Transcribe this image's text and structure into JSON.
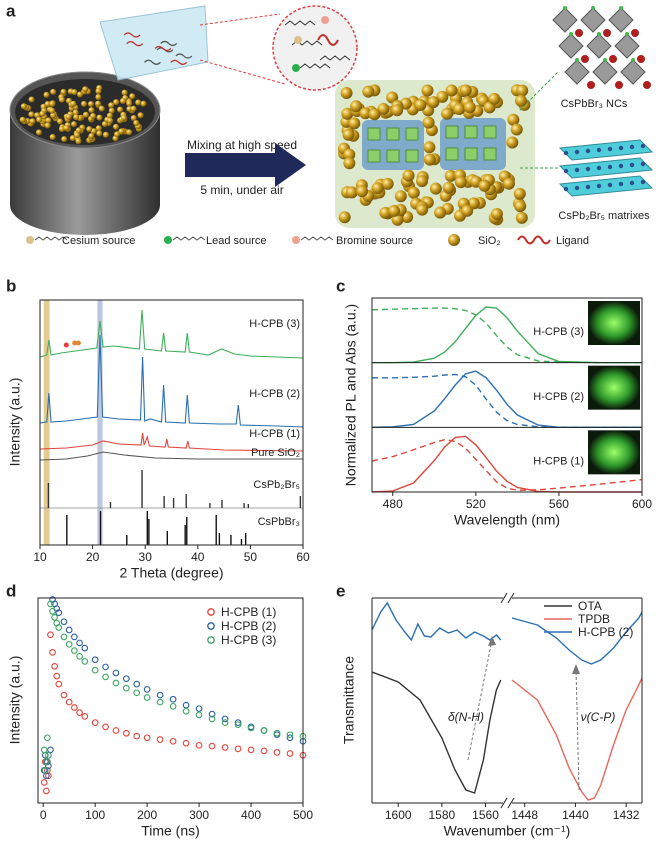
{
  "schematic": {
    "panel_label": "a",
    "arrow_top": "Mixing at high speed",
    "arrow_bottom": "5 min, under air",
    "nc_label": "CsPbBr₃ NCs",
    "matrix_label": "CsPb₂Br₅ matrixes",
    "legend": [
      "Cesium source",
      "Lead source",
      "Bromine source",
      "SiO₂",
      "Ligand"
    ]
  },
  "chart_data": [
    {
      "panel_label": "b",
      "type": "line",
      "xlabel": "2 Theta (degree)",
      "ylabel": "Intensity (a.u.)",
      "xlim": [
        10,
        60
      ],
      "xticks": [
        10,
        20,
        30,
        40,
        50,
        60
      ],
      "ylim": [
        0,
        245
      ],
      "shaded_ranges": [
        {
          "range": [
            10.7,
            11.8
          ],
          "color": "#d9b86a"
        },
        {
          "range": [
            20.9,
            21.9
          ],
          "color": "#a9b4d6"
        }
      ],
      "markers": [
        {
          "x": 15.0,
          "y": 200,
          "color": "#e0403a"
        },
        {
          "x": 16.6,
          "y": 202,
          "color": "#e08a30"
        },
        {
          "x": 17.3,
          "y": 202,
          "color": "#e08a30"
        }
      ],
      "series": [
        {
          "name": "H-CPB (3)",
          "color": "#3fae5a",
          "x": [
            10,
            11.3,
            11.7,
            12.1,
            14,
            20.8,
            21.4,
            22,
            24,
            28.9,
            29.4,
            29.9,
            31.5,
            33.1,
            33.5,
            33.9,
            37.6,
            38,
            38.4,
            42,
            44.5,
            47,
            50,
            55,
            60
          ],
          "values": [
            188,
            190,
            205,
            190,
            192,
            197,
            224,
            198,
            199,
            196,
            235,
            196,
            195,
            194,
            212,
            194,
            193,
            212,
            193,
            190,
            196,
            191,
            189,
            188,
            187
          ]
        },
        {
          "name": "H-CPB (2)",
          "color": "#2a6fb0",
          "x": [
            10,
            11.3,
            11.7,
            12.1,
            15,
            20.9,
            21.4,
            21.9,
            25,
            29.1,
            29.5,
            29.9,
            31,
            33.1,
            33.5,
            33.9,
            37.6,
            38,
            38.4,
            44,
            47.3,
            47.7,
            48.1,
            55,
            60
          ],
          "values": [
            122,
            123,
            152,
            123,
            124,
            128,
            210,
            128,
            126,
            125,
            188,
            124,
            126,
            123,
            160,
            123,
            122,
            150,
            122,
            121,
            121,
            140,
            120,
            119,
            118
          ]
        },
        {
          "name": "H-CPB (1)",
          "color": "#e0453c",
          "x": [
            10,
            15,
            20,
            22,
            25,
            29.2,
            29.5,
            29.8,
            30.4,
            30.8,
            33.8,
            34.1,
            34.4,
            37.8,
            38.1,
            38.4,
            45,
            60
          ],
          "values": [
            96,
            97,
            100,
            104,
            101,
            100,
            112,
            100,
            108,
            99,
            98,
            106,
            98,
            97,
            104,
            97,
            95,
            94
          ]
        },
        {
          "name": "Pure SiO₂",
          "color": "#555555",
          "x": [
            10,
            15,
            19,
            22,
            26,
            32,
            40,
            50,
            60
          ],
          "values": [
            85,
            86,
            89,
            93,
            90,
            87,
            86,
            86,
            86
          ]
        },
        {
          "name": "CsPb₂Br₅",
          "type": "stem",
          "base": 37,
          "color": "#333333",
          "x": [
            11.6,
            23.4,
            29.4,
            33.6,
            35.4,
            37.8,
            42.3,
            44.6,
            48.8,
            49.6,
            59.5
          ],
          "values": [
            62,
            43,
            75,
            49,
            47,
            51,
            42,
            45,
            42,
            41,
            49
          ]
        },
        {
          "name": "CsPbBr₃",
          "type": "stem",
          "base": 0,
          "color": "#111111",
          "x": [
            15.1,
            21.5,
            26.5,
            30.4,
            30.7,
            34.2,
            37.6,
            37.9,
            43.5,
            44.1,
            46.3,
            48.3,
            49.1
          ],
          "values": [
            30,
            34,
            10,
            34,
            26,
            14,
            20,
            28,
            30,
            12,
            10,
            6,
            12
          ]
        }
      ]
    },
    {
      "panel_label": "c",
      "type": "line",
      "xlabel": "Wavelength (nm)",
      "ylabel": "Normalized PL and Abs (a.u.)",
      "xlim": [
        470,
        600
      ],
      "xticks": [
        480,
        520,
        560,
        600
      ],
      "ylim": [
        0,
        1.15
      ],
      "x": [
        470,
        480,
        490,
        500,
        505,
        510,
        515,
        520,
        525,
        530,
        535,
        540,
        550,
        560,
        580,
        600
      ],
      "subplots": [
        {
          "label": "H-CPB (3)",
          "color": "#3fae5a",
          "series": [
            {
              "style": "solid",
              "values": [
                0,
                0,
                0.01,
                0.08,
                0.19,
                0.37,
                0.61,
                0.84,
                0.99,
                0.97,
                0.8,
                0.56,
                0.16,
                0.02,
                0,
                0
              ]
            },
            {
              "style": "dashed",
              "values": [
                0.94,
                0.95,
                0.96,
                0.97,
                0.97,
                0.96,
                0.93,
                0.85,
                0.7,
                0.48,
                0.28,
                0.14,
                0.03,
                0.01,
                0,
                0
              ]
            }
          ]
        },
        {
          "label": "H-CPB (2)",
          "color": "#2a6fb0",
          "series": [
            {
              "style": "solid",
              "values": [
                0,
                0.01,
                0.05,
                0.29,
                0.51,
                0.75,
                0.95,
                1.0,
                0.88,
                0.66,
                0.41,
                0.22,
                0.04,
                0,
                0,
                0
              ]
            },
            {
              "style": "dashed",
              "values": [
                0.88,
                0.88,
                0.89,
                0.91,
                0.93,
                0.94,
                0.9,
                0.75,
                0.5,
                0.27,
                0.12,
                0.05,
                0.01,
                0,
                0,
                0
              ]
            }
          ]
        },
        {
          "label": "H-CPB (1)",
          "color": "#e0453c",
          "series": [
            {
              "style": "solid",
              "values": [
                0,
                0.02,
                0.16,
                0.56,
                0.8,
                0.97,
                0.99,
                0.84,
                0.61,
                0.37,
                0.19,
                0.08,
                0.01,
                0,
                0,
                0
              ]
            },
            {
              "style": "dashed",
              "values": [
                0.55,
                0.63,
                0.75,
                0.88,
                0.93,
                0.9,
                0.78,
                0.58,
                0.38,
                0.18,
                0.07,
                0.03,
                0.04,
                0.07,
                0.14,
                0.22
              ]
            }
          ]
        }
      ]
    },
    {
      "panel_label": "d",
      "type": "scatter",
      "xlabel": "Time (ns)",
      "ylabel": "Intensity (a.u.)",
      "xlim": [
        -10,
        500
      ],
      "xticks": [
        0,
        100,
        200,
        300,
        400,
        500
      ],
      "ylim": [
        1,
        1000
      ],
      "ylog": true,
      "legend": "upper right",
      "x": [
        2,
        4,
        6,
        8,
        10,
        14,
        18,
        22,
        26,
        30,
        40,
        50,
        60,
        70,
        80,
        100,
        120,
        140,
        160,
        180,
        200,
        225,
        250,
        275,
        300,
        325,
        350,
        375,
        400,
        425,
        450,
        475,
        500
      ],
      "series": [
        {
          "name": "H-CPB (1)",
          "color": "#e8433a",
          "values": [
            2,
            4,
            1.5,
            3,
            2.5,
            290,
            160,
            100,
            72,
            55,
            38,
            30,
            25,
            21,
            18.5,
            15,
            13,
            11.5,
            10.5,
            9.5,
            9,
            8.5,
            8,
            7.5,
            7,
            6.8,
            6.5,
            6.2,
            6,
            5.8,
            5.5,
            5.3,
            5
          ]
        },
        {
          "name": "H-CPB (2)",
          "color": "#2a5ea8",
          "values": [
            3,
            5,
            2.5,
            4,
            3.5,
            6,
            950,
            820,
            700,
            610,
            450,
            340,
            270,
            220,
            185,
            125,
            98,
            80,
            66,
            55,
            46,
            38,
            33,
            27,
            24,
            20,
            17,
            15,
            13,
            11.5,
            10,
            9,
            8
          ]
        },
        {
          "name": "H-CPB (3)",
          "color": "#3da660",
          "values": [
            6,
            3,
            4,
            9,
            5,
            820,
            640,
            520,
            430,
            370,
            270,
            210,
            170,
            140,
            118,
            88,
            70,
            57,
            48,
            41,
            35,
            30,
            26,
            22,
            19.5,
            17,
            15,
            14,
            12.5,
            11.5,
            10.5,
            10,
            9.5
          ]
        }
      ]
    },
    {
      "panel_label": "e",
      "type": "line",
      "xlabel": "Wavenumber (cm⁻¹)",
      "ylabel": "Transmittance",
      "xlim": [
        [
          1612,
          1552
        ],
        [
          1450,
          1429.5
        ]
      ],
      "xticks": [
        1600,
        1580,
        1560,
        1448,
        1440,
        1432
      ],
      "ylim": [
        0,
        205
      ],
      "legend": "upper right",
      "annotations": [
        "δ(N-H)",
        "ν(C-P)"
      ],
      "series": [
        {
          "name": "OTA",
          "color": "#333333",
          "x": [
            1612,
            1600,
            1590,
            1580,
            1574,
            1569,
            1565,
            1561,
            1558,
            1555,
            1553
          ],
          "values": [
            131,
            121,
            103,
            65,
            33,
            13,
            10,
            43,
            83,
            113,
            123
          ]
        },
        {
          "name": "TPDB",
          "color": "#e8665a",
          "x": [
            1450,
            1446,
            1443,
            1441,
            1439,
            1438,
            1437,
            1436,
            1434,
            1432,
            1430,
            1429.5
          ],
          "values": [
            123,
            103,
            68,
            35,
            11,
            3,
            5,
            18,
            58,
            93,
            118,
            125
          ]
        },
        {
          "name": "H-CPB (2)",
          "color": "#2a6fb0",
          "x": [
            1612,
            1608,
            1605,
            1601,
            1597,
            1594,
            1591,
            1588,
            1585,
            1581,
            1577,
            1573,
            1569,
            1565,
            1561,
            1558,
            1555,
            1553,
            1450,
            1446,
            1443,
            1441,
            1439,
            1437.5,
            1436,
            1434,
            1432,
            1430,
            1429.5
          ],
          "values": [
            173,
            191,
            200,
            183,
            171,
            163,
            179,
            167,
            166,
            175,
            170,
            173,
            165,
            171,
            167,
            163,
            168,
            163,
            185,
            178,
            165,
            153,
            143,
            139,
            143,
            155,
            171,
            185,
            191
          ]
        }
      ]
    }
  ]
}
